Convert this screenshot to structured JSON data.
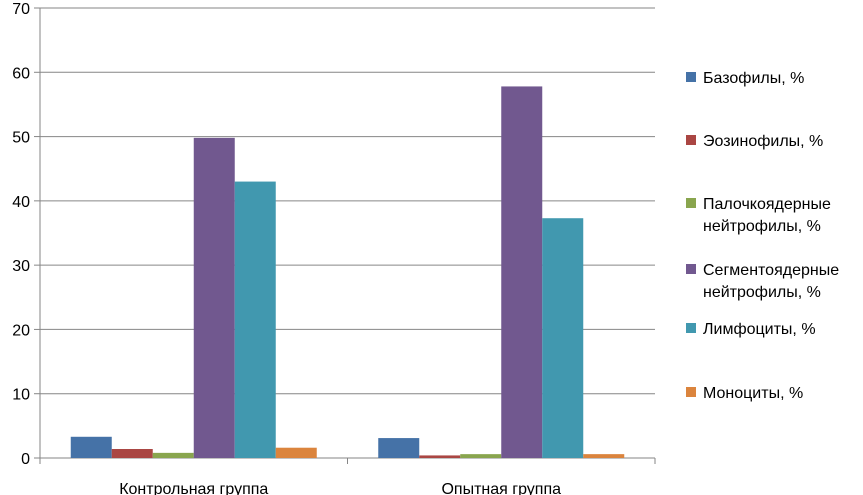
{
  "chart_data": {
    "type": "bar",
    "categories": [
      "Контрольная группа",
      "Опытная группа"
    ],
    "series": [
      {
        "name": "Базофилы, %",
        "legend_lines": [
          "Базофилы, %"
        ],
        "color": "#4572A7",
        "values": [
          3.3,
          3.1
        ]
      },
      {
        "name": "Эозинофилы, %",
        "legend_lines": [
          "Эозинофилы, %"
        ],
        "color": "#AA4643",
        "values": [
          1.4,
          0.4
        ]
      },
      {
        "name": "Палочкоядерные нейтрофилы, %",
        "legend_lines": [
          "Палочкоядерные",
          "нейтрофилы, %"
        ],
        "color": "#89A54E",
        "values": [
          0.8,
          0.6
        ]
      },
      {
        "name": "Сегментоядерные нейтрофилы, %",
        "legend_lines": [
          "Сегментоядерные",
          "нейтрофилы, %"
        ],
        "color": "#71588F",
        "values": [
          49.8,
          57.8
        ]
      },
      {
        "name": "Лимфоциты, %",
        "legend_lines": [
          "Лимфоциты, %"
        ],
        "color": "#4198AF",
        "values": [
          43.0,
          37.3
        ]
      },
      {
        "name": "Моноциты, %",
        "legend_lines": [
          "Моноциты, %"
        ],
        "color": "#DB843D",
        "values": [
          1.6,
          0.6
        ]
      }
    ],
    "yticks": [
      0,
      10,
      20,
      30,
      40,
      50,
      60,
      70
    ],
    "ylim": [
      0,
      70
    ],
    "title": "",
    "xlabel": "",
    "ylabel": "",
    "grid": true,
    "legend_position": "right"
  }
}
